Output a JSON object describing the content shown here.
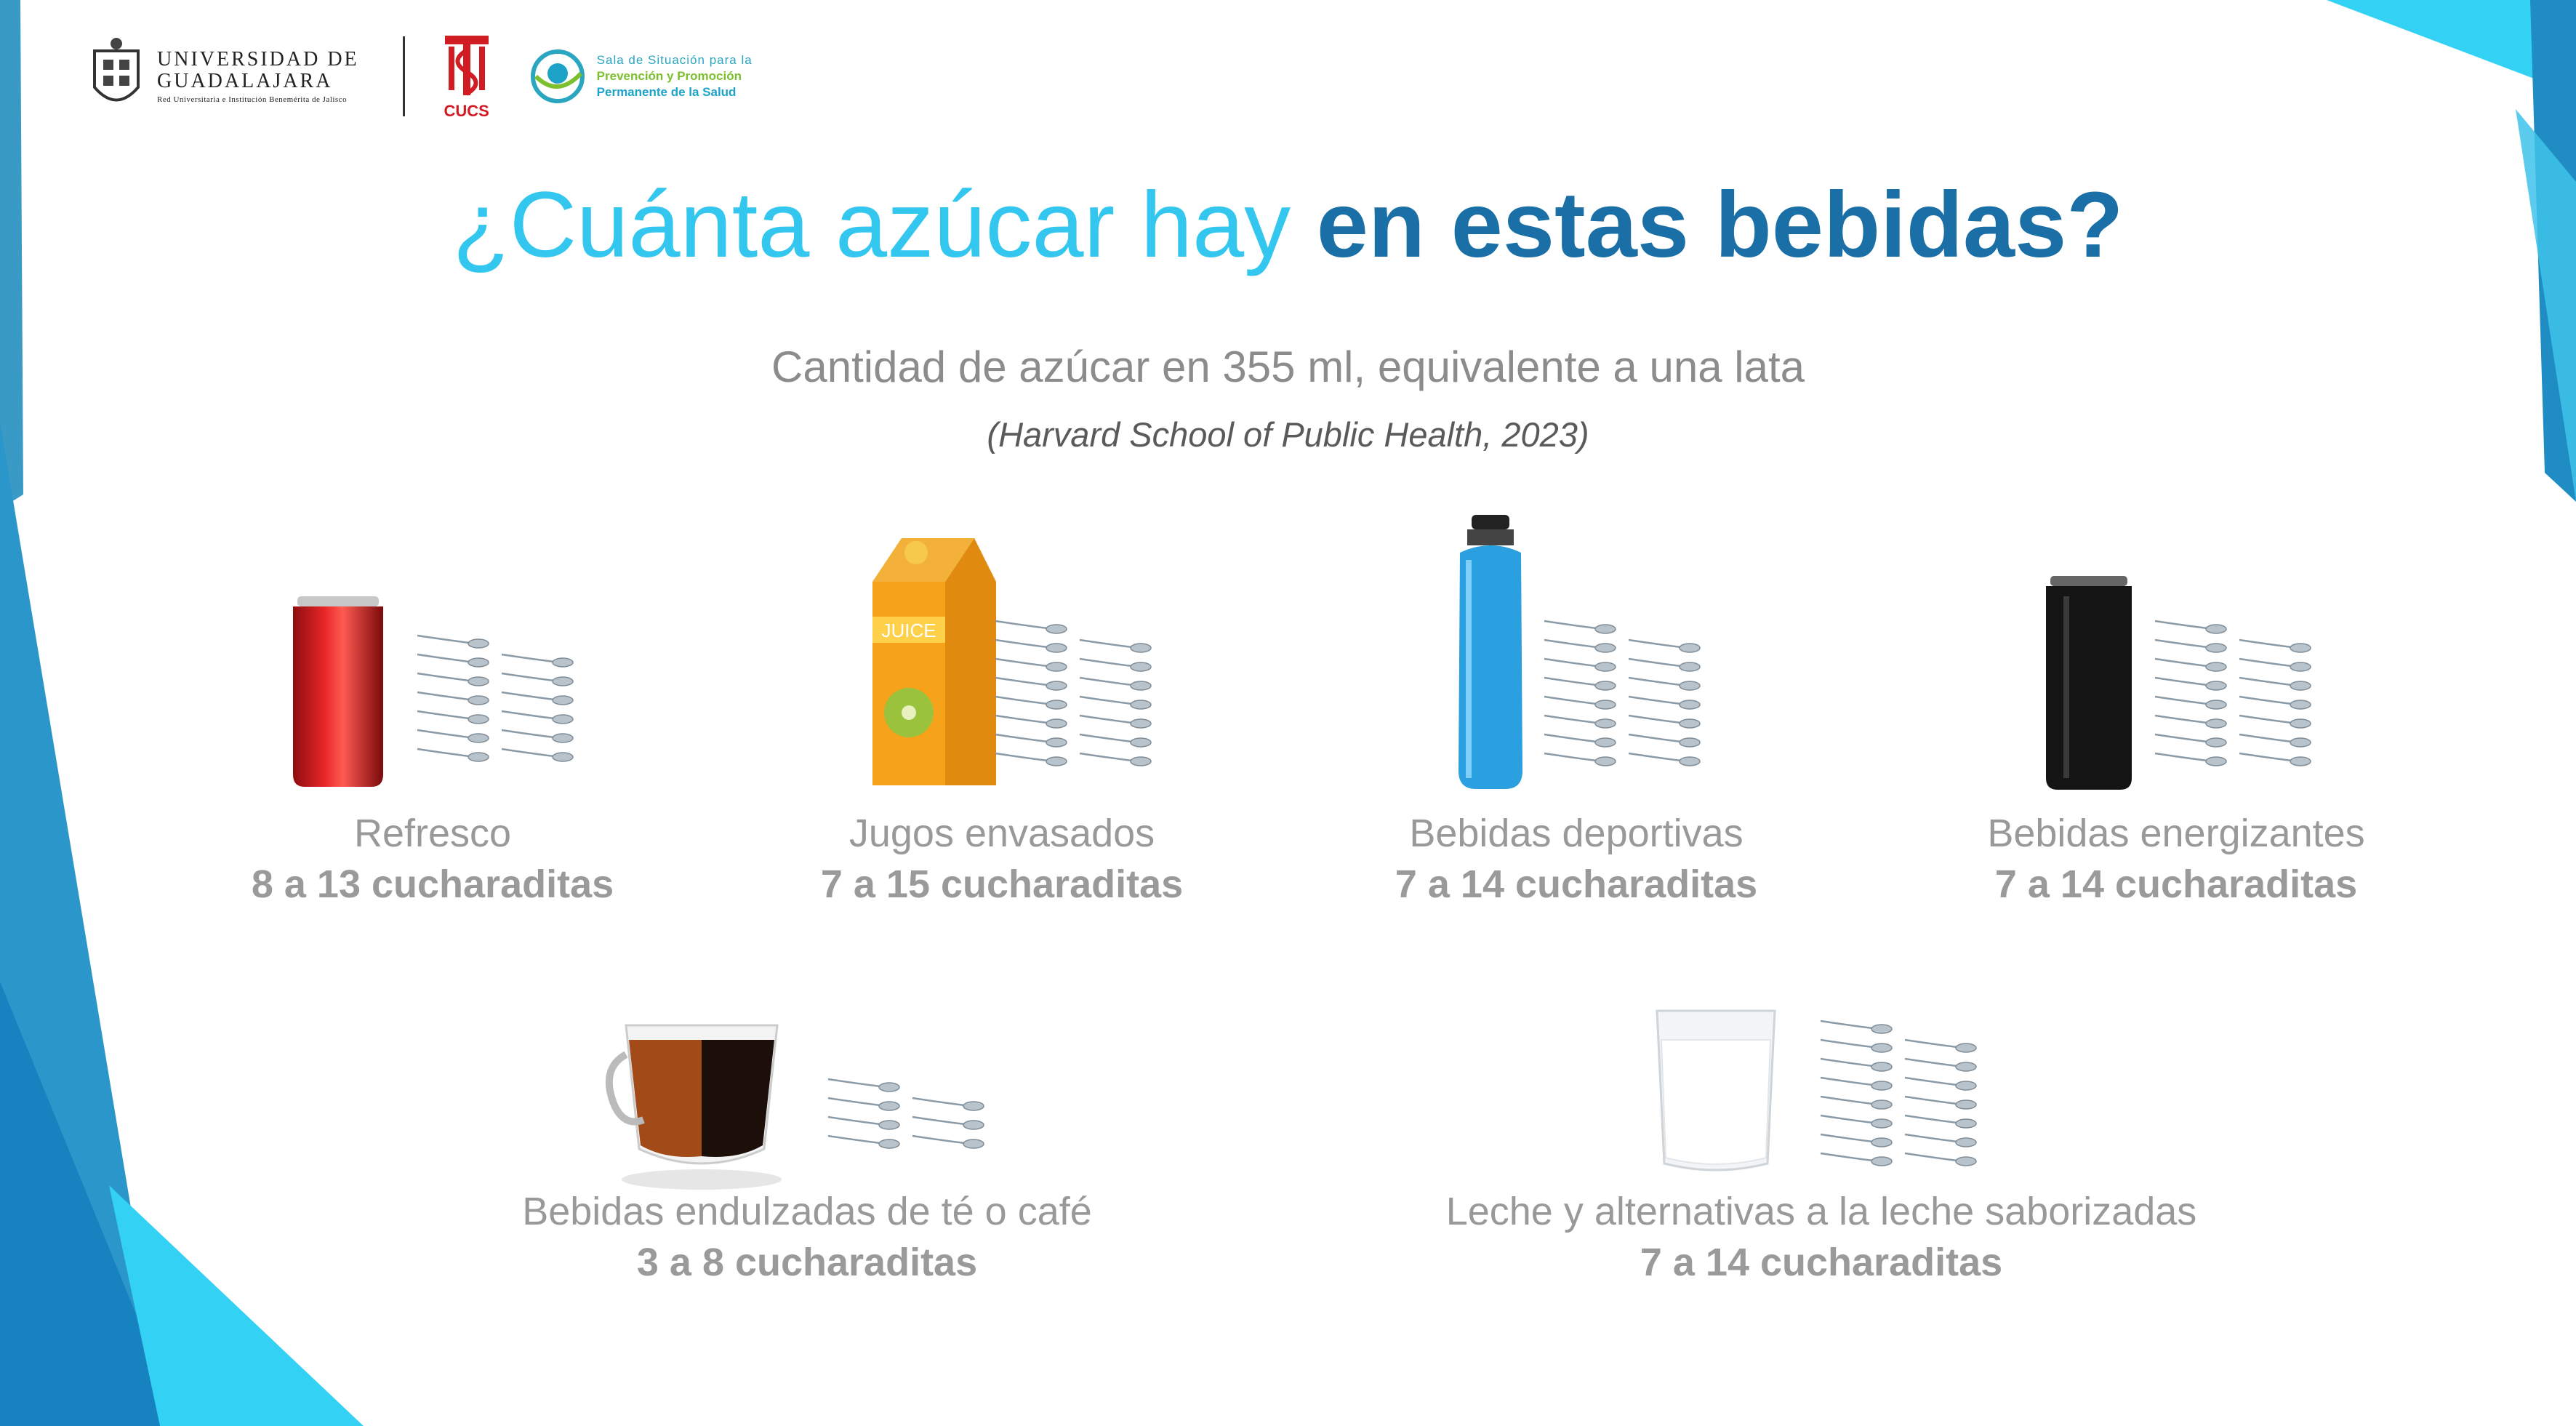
{
  "header": {
    "udg_line1": "UNIVERSIDAD DE",
    "udg_line2": "GUADALAJARA",
    "udg_line3": "Red Universitaria e Institución Benemérita de Jalisco",
    "cucs_label": "CUCS",
    "sala_line1": "Sala de Situación para la",
    "sala_line2": "Prevención y Promoción",
    "sala_line3": "Permanente de la Salud"
  },
  "title_light": "¿Cuánta azúcar hay ",
  "title_bold": "en estas bebidas?",
  "subtitle": "Cantidad de azúcar en 355 ml, equivalente a una lata",
  "source": "(Harvard School of Public Health, 2023)",
  "juice_label": "JUICE",
  "items": [
    {
      "name": "Refresco",
      "amount": "8 a 13 cucharaditas"
    },
    {
      "name": "Jugos envasados",
      "amount": "7 a 15 cucharaditas"
    },
    {
      "name": "Bebidas deportivas",
      "amount": "7 a 14 cucharaditas"
    },
    {
      "name": "Bebidas energizantes",
      "amount": "7 a 14 cucharaditas"
    },
    {
      "name": "Bebidas endulzadas de té o café",
      "amount": "3 a 8 cucharaditas"
    },
    {
      "name": "Leche y alternativas a la leche saborizadas",
      "amount": "7 a 14 cucharaditas"
    }
  ],
  "colors": {
    "title_light": "#33c6ee",
    "title_bold": "#1a6fa6",
    "deco_blue": "#1d8fc4",
    "deco_cyan": "#33d1f4"
  }
}
